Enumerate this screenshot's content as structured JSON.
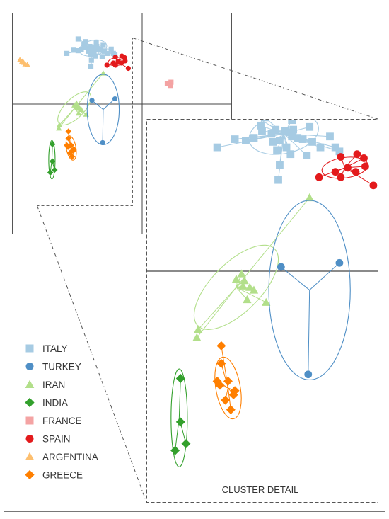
{
  "chart_data": {
    "type": "scatter",
    "title": "",
    "xlabel": "",
    "ylabel": "",
    "grid": false,
    "legend_position": "bottom-left",
    "detail_label": "CLUSTER DETAIL",
    "colors": {
      "ITALY": "#a6cbe3",
      "TURKEY": "#4f8fc6",
      "IRAN": "#b2df8a",
      "INDIA": "#33a02c",
      "FRANCE": "#f4a3a3",
      "SPAIN": "#e31a1c",
      "ARGENTINA": "#fdbf6f",
      "GREECE": "#ff7f00"
    },
    "legend": [
      {
        "name": "ITALY",
        "marker": "square"
      },
      {
        "name": "TURKEY",
        "marker": "circle"
      },
      {
        "name": "IRAN",
        "marker": "triangle"
      },
      {
        "name": "INDIA",
        "marker": "diamond"
      },
      {
        "name": "FRANCE",
        "marker": "square"
      },
      {
        "name": "SPAIN",
        "marker": "circle"
      },
      {
        "name": "ARGENTINA",
        "marker": "triangle"
      },
      {
        "name": "GREECE",
        "marker": "diamond"
      }
    ],
    "series": [
      {
        "name": "ITALY",
        "marker": "square",
        "centroid": [
          1.0,
          3.6
        ],
        "ellipse": [
          2.6,
          1.45,
          -12
        ],
        "points": [
          [
            -1.8,
            5.3
          ],
          [
            -0.4,
            4.8
          ],
          [
            1.6,
            4.6
          ],
          [
            0.4,
            3.9
          ],
          [
            1.1,
            3.8
          ],
          [
            2.9,
            4.1
          ],
          [
            -0.7,
            4.2
          ],
          [
            -2.6,
            3.2
          ],
          [
            -1.8,
            3.1
          ],
          [
            -1.2,
            3.3
          ],
          [
            -0.6,
            3.8
          ],
          [
            0.2,
            3.0
          ],
          [
            0.7,
            3.1
          ],
          [
            1.4,
            3.7
          ],
          [
            1.6,
            3.4
          ],
          [
            2.0,
            3.3
          ],
          [
            2.4,
            3.2
          ],
          [
            3.1,
            3.0
          ],
          [
            4.4,
            3.4
          ],
          [
            4.8,
            2.6
          ],
          [
            5.1,
            2.3
          ],
          [
            -3.9,
            2.6
          ],
          [
            0.5,
            2.4
          ],
          [
            1.2,
            2.6
          ],
          [
            1.5,
            2.1
          ],
          [
            2.7,
            2.0
          ],
          [
            3.7,
            2.6
          ],
          [
            0.7,
            1.3
          ],
          [
            0.6,
            0.2
          ],
          [
            1.7,
            3.9
          ],
          [
            0.1,
            3.6
          ]
        ]
      },
      {
        "name": "SPAIN",
        "marker": "circle",
        "centroid": [
          5.5,
          1.1
        ],
        "ellipse": [
          1.7,
          0.75,
          -8
        ],
        "points": [
          [
            5.2,
            1.9
          ],
          [
            6.4,
            2.1
          ],
          [
            6.9,
            1.8
          ],
          [
            7.0,
            1.2
          ],
          [
            5.7,
            1.1
          ],
          [
            6.3,
            0.8
          ],
          [
            4.8,
            0.8
          ],
          [
            3.6,
            0.4
          ],
          [
            5.2,
            0.4
          ],
          [
            7.6,
            -0.2
          ]
        ]
      },
      {
        "name": "ARGENTINA",
        "marker": "triangle",
        "centroid": [
          -11.9,
          0.9
        ],
        "points": [
          [
            -12.7,
            1.4
          ],
          [
            -12.0,
            0.9
          ],
          [
            -11.3,
            0.5
          ],
          [
            -11.7,
            0.6
          ],
          [
            -12.3,
            1.1
          ]
        ]
      },
      {
        "name": "FRANCE",
        "marker": "square",
        "centroid": [
          15.3,
          -3.2
        ],
        "points": [
          [
            14.9,
            -3.0
          ],
          [
            15.6,
            -2.8
          ],
          [
            15.5,
            -3.4
          ]
        ]
      },
      {
        "name": "IRAN",
        "marker": "triangle",
        "centroid": [
          -2.5,
          -7.7
        ],
        "ellipse": [
          4.0,
          1.8,
          -45
        ],
        "points": [
          [
            2.9,
            -1.1
          ],
          [
            -2.5,
            -7.1
          ],
          [
            -2.1,
            -6.7
          ],
          [
            -1.9,
            -7.2
          ],
          [
            -2.0,
            -7.6
          ],
          [
            -1.7,
            -8.6
          ],
          [
            -1.5,
            -7.7
          ],
          [
            -1.2,
            -7.9
          ],
          [
            -0.3,
            -8.8
          ],
          [
            -5.3,
            -10.8
          ],
          [
            -5.4,
            -11.4
          ]
        ]
      },
      {
        "name": "TURKEY",
        "marker": "circle",
        "centroid": [
          2.9,
          -7.9
        ],
        "ellipse": [
          3.0,
          6.6,
          0
        ],
        "points": [
          [
            0.8,
            -6.2
          ],
          [
            5.1,
            -5.9
          ],
          [
            2.8,
            -14.1
          ]
        ]
      },
      {
        "name": "INDIA",
        "marker": "diamond",
        "centroid": [
          -6.7,
          -17.3
        ],
        "ellipse": [
          0.6,
          3.6,
          0
        ],
        "points": [
          [
            -6.6,
            -14.4
          ],
          [
            -7.0,
            -19.7
          ],
          [
            -6.2,
            -19.2
          ],
          [
            -6.6,
            -17.6
          ]
        ]
      },
      {
        "name": "GREECE",
        "marker": "diamond",
        "centroid": [
          -3.1,
          -15.1
        ],
        "ellipse": [
          0.9,
          2.3,
          -10
        ],
        "points": [
          [
            -3.6,
            -12.0
          ],
          [
            -3.6,
            -13.3
          ],
          [
            -3.9,
            -14.6
          ],
          [
            -3.1,
            -14.6
          ],
          [
            -2.6,
            -15.3
          ],
          [
            -3.7,
            -14.9
          ],
          [
            -2.7,
            -15.6
          ],
          [
            -3.3,
            -16.0
          ],
          [
            -2.9,
            -16.7
          ]
        ]
      }
    ],
    "detail_xlim": [
      -15,
      17
    ],
    "detail_ylim": [
      -22,
      7
    ]
  }
}
